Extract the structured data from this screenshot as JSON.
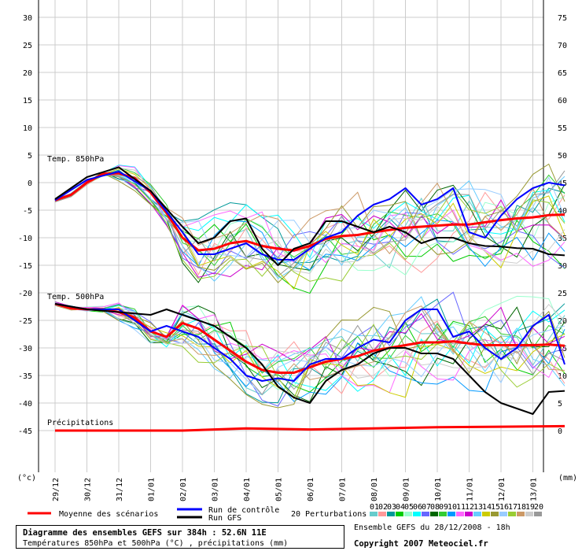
{
  "chart_data": {
    "type": "line",
    "left_axis_unit": "(°c)",
    "right_axis_unit": "(mm)",
    "left_ticks": [
      30,
      25,
      20,
      15,
      10,
      5,
      0,
      -5,
      -10,
      -15,
      -20,
      -25,
      -30,
      -35,
      -40,
      -45
    ],
    "right_ticks": [
      75,
      70,
      65,
      60,
      55,
      50,
      45,
      40,
      35,
      30,
      25,
      20,
      15,
      10,
      5,
      0
    ],
    "x_labels": [
      "29/12",
      "30/12",
      "31/12",
      "01/01",
      "02/01",
      "03/01",
      "04/01",
      "05/01",
      "06/01",
      "07/01",
      "08/01",
      "09/01",
      "10/01",
      "11/01",
      "12/01",
      "13/01"
    ],
    "ylim": [
      -45,
      30
    ],
    "panels": [
      {
        "label": "Temp. 850hPa",
        "series": [
          {
            "name": "Moyenne des scénarios",
            "color": "#ff0000",
            "width": 3,
            "points": [
              [
                0,
                -3.2
              ],
              [
                0.5,
                -2.2
              ],
              [
                1,
                0
              ],
              [
                1.5,
                1.6
              ],
              [
                2,
                1.7
              ],
              [
                2.5,
                0.8
              ],
              [
                3,
                -1.8
              ],
              [
                3.5,
                -5.5
              ],
              [
                4,
                -10
              ],
              [
                4.5,
                -12.3
              ],
              [
                5,
                -12
              ],
              [
                5.5,
                -11
              ],
              [
                6,
                -10.6
              ],
              [
                6.5,
                -11.5
              ],
              [
                7,
                -12
              ],
              [
                7.5,
                -12.3
              ],
              [
                8,
                -11.5
              ],
              [
                8.5,
                -10.2
              ],
              [
                9,
                -9.7
              ],
              [
                9.5,
                -9.5
              ],
              [
                10,
                -9
              ],
              [
                10.5,
                -8.6
              ],
              [
                11,
                -8.2
              ],
              [
                11.5,
                -8
              ],
              [
                12,
                -7.8
              ],
              [
                12.5,
                -7.6
              ],
              [
                13,
                -7.6
              ],
              [
                13.5,
                -7.2
              ],
              [
                14,
                -6.8
              ],
              [
                14.5,
                -6.5
              ],
              [
                15,
                -6.3
              ],
              [
                15.5,
                -5.9
              ],
              [
                16,
                -5.8
              ]
            ]
          },
          {
            "name": "Run de contrôle",
            "color": "#0000ff",
            "width": 2,
            "points": [
              [
                0,
                -3.2
              ],
              [
                1,
                0.5
              ],
              [
                2,
                2
              ],
              [
                3,
                -1.5
              ],
              [
                4,
                -9
              ],
              [
                4.5,
                -13
              ],
              [
                5,
                -13
              ],
              [
                6,
                -11
              ],
              [
                6.5,
                -13
              ],
              [
                7,
                -14
              ],
              [
                7.5,
                -14
              ],
              [
                8,
                -12
              ],
              [
                8.5,
                -10
              ],
              [
                9,
                -9
              ],
              [
                9.5,
                -6
              ],
              [
                10,
                -4
              ],
              [
                10.5,
                -3
              ],
              [
                11,
                -1
              ],
              [
                11.5,
                -4
              ],
              [
                12,
                -3
              ],
              [
                12.5,
                -1
              ],
              [
                13,
                -9
              ],
              [
                13.5,
                -10
              ],
              [
                14,
                -6
              ],
              [
                14.5,
                -3
              ],
              [
                15,
                -1
              ],
              [
                15.5,
                0
              ],
              [
                16,
                -0.5
              ]
            ]
          },
          {
            "name": "Run GFS",
            "color": "#000000",
            "width": 2,
            "points": [
              [
                0,
                -3
              ],
              [
                1,
                1
              ],
              [
                2,
                2.8
              ],
              [
                3,
                -1.5
              ],
              [
                4,
                -8
              ],
              [
                4.5,
                -11
              ],
              [
                5,
                -10
              ],
              [
                5.5,
                -7
              ],
              [
                6,
                -6.5
              ],
              [
                6.5,
                -12
              ],
              [
                7,
                -15
              ],
              [
                7.5,
                -12
              ],
              [
                8,
                -11
              ],
              [
                8.5,
                -7
              ],
              [
                9,
                -7
              ],
              [
                9.5,
                -8
              ],
              [
                10,
                -9
              ],
              [
                10.5,
                -8
              ],
              [
                11,
                -9
              ],
              [
                11.5,
                -11
              ],
              [
                12,
                -10
              ],
              [
                12.5,
                -10
              ],
              [
                13,
                -11
              ],
              [
                13.5,
                -11.5
              ],
              [
                14,
                -11.6
              ],
              [
                14.5,
                -11.9
              ],
              [
                15,
                -12
              ],
              [
                15.5,
                -13
              ],
              [
                16,
                -13.2
              ]
            ]
          }
        ]
      },
      {
        "label": "Temp. 500hPa",
        "series": [
          {
            "name": "Moyenne des scénarios",
            "color": "#ff0000",
            "width": 3,
            "points": [
              [
                0,
                -22
              ],
              [
                0.5,
                -22.8
              ],
              [
                1,
                -23
              ],
              [
                1.5,
                -23
              ],
              [
                2,
                -23.5
              ],
              [
                2.5,
                -24.5
              ],
              [
                3,
                -27
              ],
              [
                3.5,
                -28
              ],
              [
                4,
                -25.5
              ],
              [
                4.5,
                -26.5
              ],
              [
                5,
                -28.5
              ],
              [
                5.5,
                -30.5
              ],
              [
                6,
                -32.5
              ],
              [
                6.5,
                -34
              ],
              [
                7,
                -34.5
              ],
              [
                7.5,
                -34.5
              ],
              [
                8,
                -33.5
              ],
              [
                8.5,
                -32.5
              ],
              [
                9,
                -32
              ],
              [
                9.5,
                -31.5
              ],
              [
                10,
                -30.5
              ],
              [
                10.5,
                -30
              ],
              [
                11,
                -29.5
              ],
              [
                11.5,
                -29
              ],
              [
                12,
                -29
              ],
              [
                12.5,
                -28.8
              ],
              [
                13,
                -29.2
              ],
              [
                13.5,
                -29.5
              ],
              [
                14,
                -29.5
              ],
              [
                14.5,
                -29.5
              ],
              [
                15,
                -29.5
              ],
              [
                15.5,
                -29.4
              ],
              [
                16,
                -29.6
              ]
            ]
          },
          {
            "name": "Run de contrôle",
            "color": "#0000ff",
            "width": 2,
            "points": [
              [
                0,
                -22
              ],
              [
                1,
                -23
              ],
              [
                2,
                -23
              ],
              [
                3,
                -27
              ],
              [
                3.5,
                -26
              ],
              [
                4,
                -27
              ],
              [
                4.5,
                -28
              ],
              [
                5,
                -30
              ],
              [
                5.5,
                -32
              ],
              [
                6,
                -35
              ],
              [
                6.5,
                -36
              ],
              [
                7,
                -35.5
              ],
              [
                7.5,
                -36
              ],
              [
                8,
                -33
              ],
              [
                8.5,
                -32
              ],
              [
                9,
                -32
              ],
              [
                9.5,
                -30
              ],
              [
                10,
                -28.5
              ],
              [
                10.5,
                -29
              ],
              [
                11,
                -25
              ],
              [
                11.5,
                -23
              ],
              [
                12,
                -23
              ],
              [
                12.5,
                -28
              ],
              [
                13,
                -27
              ],
              [
                13.5,
                -30
              ],
              [
                14,
                -32
              ],
              [
                14.5,
                -30
              ],
              [
                15,
                -26
              ],
              [
                15.5,
                -24
              ],
              [
                16,
                -33
              ]
            ]
          },
          {
            "name": "Run GFS",
            "color": "#000000",
            "width": 2,
            "points": [
              [
                0,
                -22
              ],
              [
                1,
                -23
              ],
              [
                2,
                -23.5
              ],
              [
                3,
                -24
              ],
              [
                3.5,
                -23
              ],
              [
                4,
                -24
              ],
              [
                4.5,
                -25
              ],
              [
                5,
                -26
              ],
              [
                5.5,
                -28
              ],
              [
                6,
                -30
              ],
              [
                6.5,
                -33
              ],
              [
                7,
                -37
              ],
              [
                7.5,
                -39
              ],
              [
                8,
                -40
              ],
              [
                8.5,
                -36
              ],
              [
                9,
                -34
              ],
              [
                9.5,
                -33
              ],
              [
                10,
                -31
              ],
              [
                10.5,
                -30
              ],
              [
                11,
                -30
              ],
              [
                11.5,
                -31
              ],
              [
                12,
                -31
              ],
              [
                12.5,
                -32
              ],
              [
                13,
                -35
              ],
              [
                13.5,
                -38
              ],
              [
                14,
                -40
              ],
              [
                14.5,
                -41
              ],
              [
                15,
                -42
              ],
              [
                15.5,
                -38
              ],
              [
                16,
                -37.8
              ]
            ]
          }
        ]
      },
      {
        "label": "Précipitations",
        "series": [
          {
            "name": "Moyenne des scénarios",
            "color": "#ff0000",
            "width": 3,
            "points": [
              [
                0,
                -45
              ],
              [
                4,
                -45
              ],
              [
                6,
                -44.6
              ],
              [
                8,
                -44.8
              ],
              [
                10,
                -44.6
              ],
              [
                12,
                -44.4
              ],
              [
                14,
                -44.3
              ],
              [
                16,
                -44.2
              ]
            ]
          }
        ]
      }
    ],
    "perturbation_colors": [
      "#66cccc",
      "#ff9999",
      "#009999",
      "#00cc00",
      "#99ffcc",
      "#00ffff",
      "#6666ff",
      "#006600",
      "#33cc33",
      "#0099ff",
      "#ff66ff",
      "#cc00cc",
      "#66ccff",
      "#cccc00",
      "#999933",
      "#99ccff",
      "#99cc33",
      "#cc9966",
      "#cccccc",
      "#999999"
    ]
  },
  "legend": {
    "mean_label": "Moyenne des scénarios",
    "control_label": "Run de contrôle",
    "gfs_label": "Run GFS",
    "perturbations_label": "20 Perturbations",
    "perturbation_numbers": [
      "01",
      "02",
      "03",
      "04",
      "05",
      "06",
      "07",
      "08",
      "09",
      "10",
      "11",
      "12",
      "13",
      "14",
      "15",
      "16",
      "17",
      "18",
      "19",
      "20"
    ]
  },
  "info": {
    "title": "Diagramme des ensembles GEFS sur 384h : 52.6N 11E",
    "subtitle": "Températures 850hPa et 500hPa (°C) , précipitations (mm)",
    "run": "Ensemble GEFS du 28/12/2008 - 18h",
    "copyright": "Copyright 2007 Meteociel.fr"
  }
}
